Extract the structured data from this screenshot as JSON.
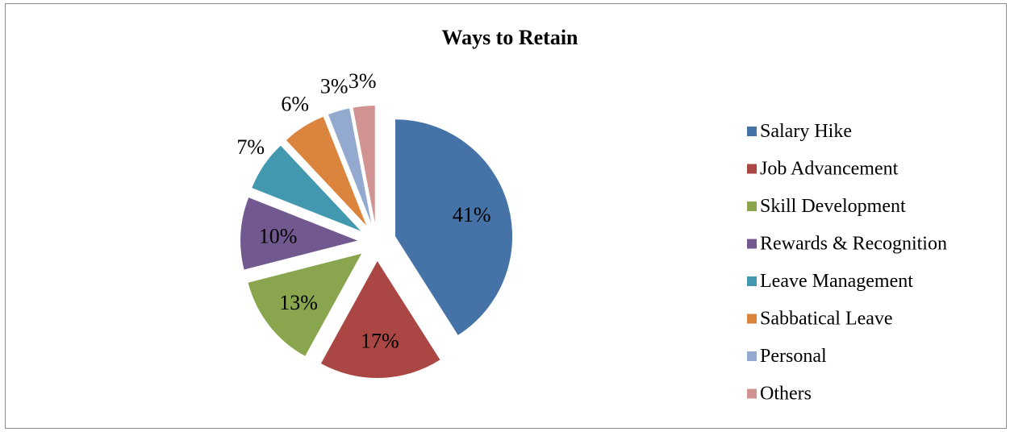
{
  "chart_data": {
    "type": "pie",
    "title": "Ways to Retain",
    "categories": [
      "Salary Hike",
      "Job Advancement",
      "Skill Development",
      "Rewards & Recognition",
      "Leave Management",
      "Sabbatical Leave",
      "Personal",
      "Others"
    ],
    "values": [
      41,
      17,
      13,
      10,
      7,
      6,
      3,
      3
    ],
    "labels": [
      "41%",
      "17%",
      "13%",
      "10%",
      "7%",
      "6%",
      "3%",
      "3%"
    ],
    "colors": [
      "#4572A7",
      "#AA4643",
      "#89A54E",
      "#71588F",
      "#4198AF",
      "#DB843D",
      "#93A9CF",
      "#D19392"
    ],
    "exploded": true,
    "legend_position": "right"
  }
}
